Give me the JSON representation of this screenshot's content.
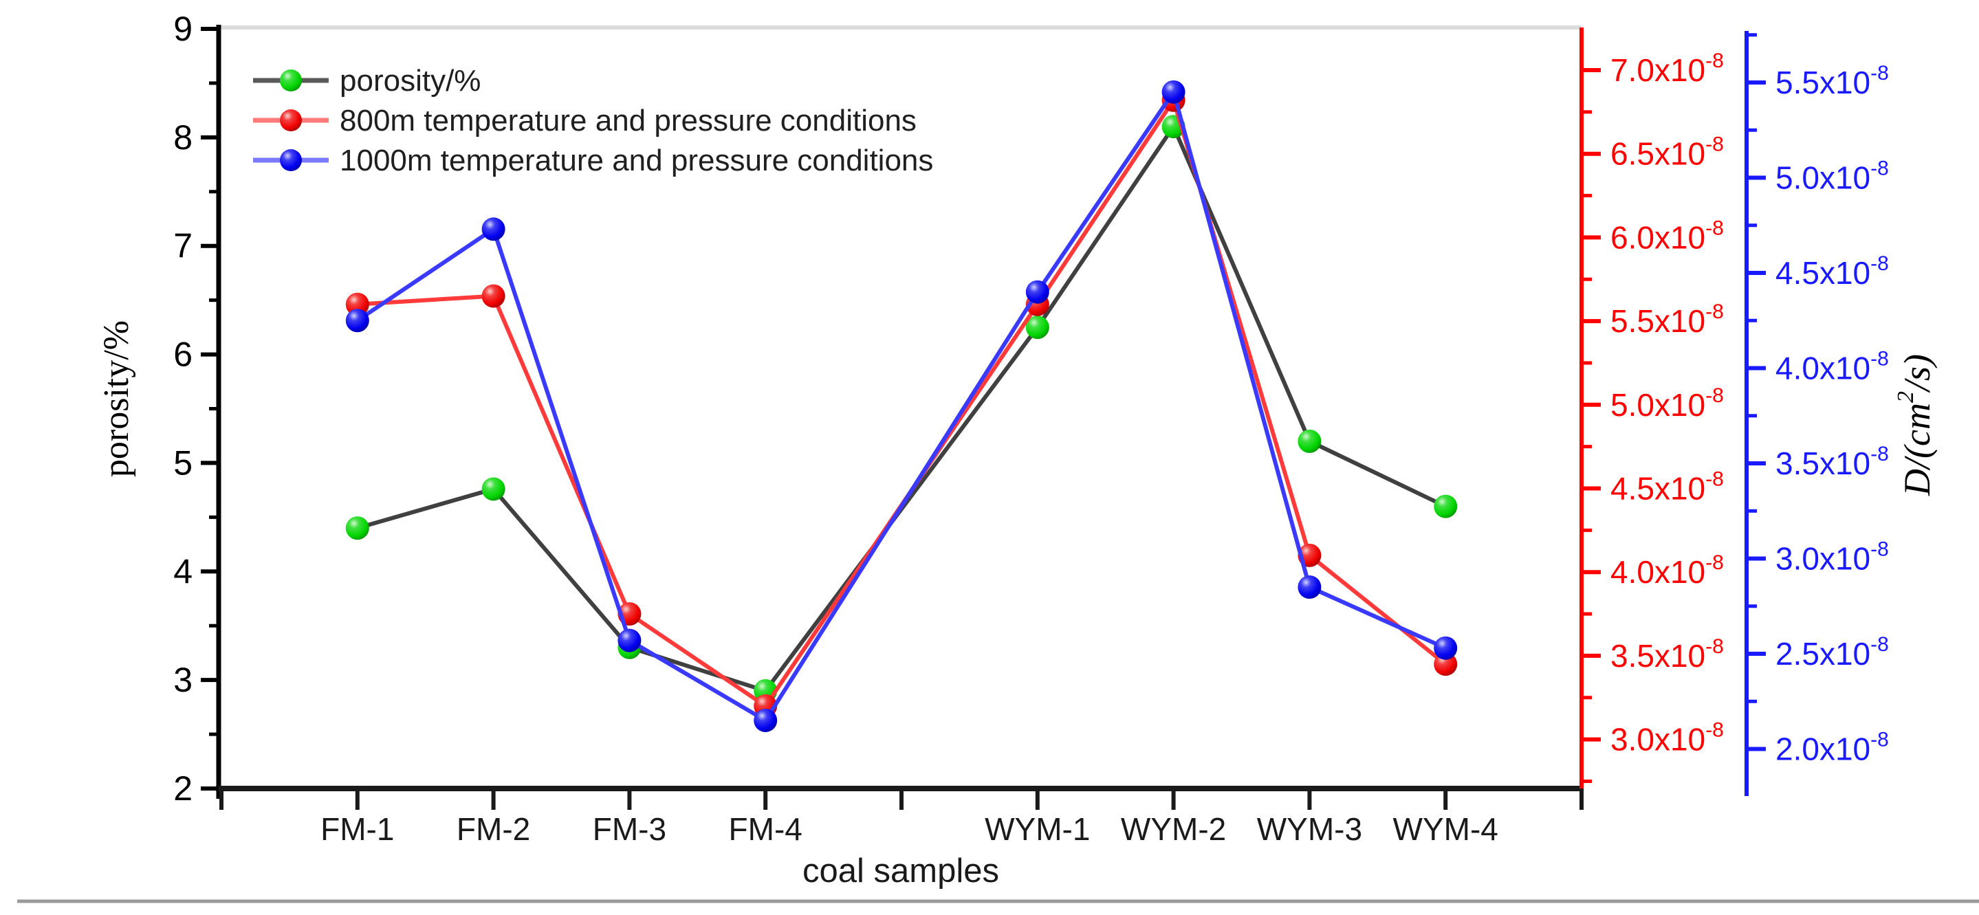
{
  "page": {
    "background": "#ffffff",
    "top_frame_color": "#dcdcdc",
    "bottom_rule_color": "#999999",
    "axis_black": "#111111"
  },
  "chart_data": {
    "type": "line",
    "title": "",
    "xlabel": "coal samples",
    "categories": [
      "FM-1",
      "FM-2",
      "FM-3",
      "FM-4",
      "WYM-1",
      "WYM-2",
      "WYM-3",
      "WYM-4"
    ],
    "x_slots": [
      1,
      2,
      3,
      4,
      6,
      7,
      8,
      9
    ],
    "grid": false,
    "legend_position": "top-left-inside",
    "axes": {
      "left": {
        "label": "porosity/%",
        "color": "#000000",
        "range": [
          2,
          9
        ],
        "major_ticks": [
          {
            "v": 9,
            "text": "9"
          },
          {
            "v": 8,
            "text": "8"
          },
          {
            "v": 7,
            "text": "7"
          },
          {
            "v": 6,
            "text": "6"
          },
          {
            "v": 5,
            "text": "5"
          },
          {
            "v": 4,
            "text": "4"
          },
          {
            "v": 3,
            "text": "3"
          },
          {
            "v": 2,
            "text": "2"
          }
        ]
      },
      "right_red": {
        "label": "",
        "color": "#ff0000",
        "range_x1e8": [
          3.0,
          7.0
        ],
        "major_ticks": [
          {
            "v": 7.0,
            "mantissa": "7.0x10",
            "exp": "-8"
          },
          {
            "v": 6.5,
            "mantissa": "6.5x10",
            "exp": "-8"
          },
          {
            "v": 6.0,
            "mantissa": "6.0x10",
            "exp": "-8"
          },
          {
            "v": 5.5,
            "mantissa": "5.5x10",
            "exp": "-8"
          },
          {
            "v": 5.0,
            "mantissa": "5.0x10",
            "exp": "-8"
          },
          {
            "v": 4.5,
            "mantissa": "4.5x10",
            "exp": "-8"
          },
          {
            "v": 4.0,
            "mantissa": "4.0x10",
            "exp": "-8"
          },
          {
            "v": 3.5,
            "mantissa": "3.5x10",
            "exp": "-8"
          },
          {
            "v": 3.0,
            "mantissa": "3.0x10",
            "exp": "-8"
          }
        ]
      },
      "right_blue": {
        "label_parts": {
          "prefix": "D/(cm",
          "sup": "2",
          "suffix": "/s)"
        },
        "color": "#1a1aff",
        "range_x1e8": [
          2.0,
          5.5
        ],
        "major_ticks": [
          {
            "v": 5.5,
            "mantissa": "5.5x10",
            "exp": "-8"
          },
          {
            "v": 5.0,
            "mantissa": "5.0x10",
            "exp": "-8"
          },
          {
            "v": 4.5,
            "mantissa": "4.5x10",
            "exp": "-8"
          },
          {
            "v": 4.0,
            "mantissa": "4.0x10",
            "exp": "-8"
          },
          {
            "v": 3.5,
            "mantissa": "3.5x10",
            "exp": "-8"
          },
          {
            "v": 3.0,
            "mantissa": "3.0x10",
            "exp": "-8"
          },
          {
            "v": 2.5,
            "mantissa": "2.5x10",
            "exp": "-8"
          },
          {
            "v": 2.0,
            "mantissa": "2.0x10",
            "exp": "-8"
          }
        ]
      }
    },
    "series": [
      {
        "name": "porosity/%",
        "axis": "left",
        "line_color": "#404040",
        "legend_line_color": "#5a5a5a",
        "marker_color": "#00d500",
        "values": [
          4.4,
          4.76,
          3.3,
          2.9,
          6.25,
          8.1,
          5.2,
          4.6
        ]
      },
      {
        "name": "800m temperature and pressure conditions",
        "axis": "right_red",
        "line_color": "#ff3a3a",
        "legend_line_color": "#ff7a7a",
        "marker_color": "#f00000",
        "values_x1e8": [
          5.6,
          5.65,
          3.75,
          3.2,
          5.6,
          6.82,
          4.1,
          3.45
        ]
      },
      {
        "name": "1000m temperature and pressure conditions",
        "axis": "right_blue",
        "line_color": "#3a3aff",
        "legend_line_color": "#7a7aff",
        "marker_color": "#0000f0",
        "values_x1e8": [
          4.25,
          4.73,
          2.57,
          2.15,
          4.4,
          5.45,
          2.85,
          2.53
        ]
      }
    ]
  }
}
